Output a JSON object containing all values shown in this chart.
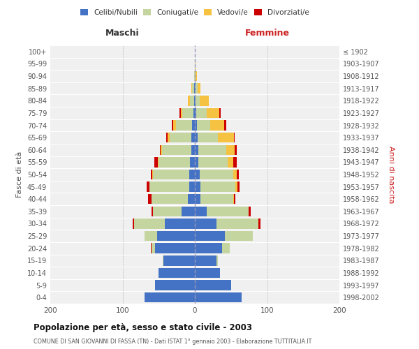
{
  "age_groups": [
    "0-4",
    "5-9",
    "10-14",
    "15-19",
    "20-24",
    "25-29",
    "30-34",
    "35-39",
    "40-44",
    "45-49",
    "50-54",
    "55-59",
    "60-64",
    "65-69",
    "70-74",
    "75-79",
    "80-84",
    "85-89",
    "90-94",
    "95-99",
    "100+"
  ],
  "birth_years": [
    "1998-2002",
    "1993-1997",
    "1988-1992",
    "1983-1987",
    "1978-1982",
    "1973-1977",
    "1968-1972",
    "1963-1967",
    "1958-1962",
    "1953-1957",
    "1948-1952",
    "1943-1947",
    "1938-1942",
    "1933-1937",
    "1928-1932",
    "1923-1927",
    "1918-1922",
    "1913-1917",
    "1908-1912",
    "1903-1907",
    "≤ 1902"
  ],
  "maschi": {
    "celibi": [
      70,
      55,
      50,
      43,
      55,
      52,
      42,
      18,
      10,
      8,
      8,
      7,
      5,
      5,
      4,
      2,
      1,
      1,
      0,
      0,
      0
    ],
    "coniugati": [
      0,
      0,
      0,
      1,
      5,
      18,
      42,
      40,
      50,
      55,
      50,
      43,
      40,
      30,
      22,
      15,
      6,
      3,
      1,
      0,
      0
    ],
    "vedovi": [
      0,
      0,
      0,
      0,
      0,
      0,
      0,
      0,
      0,
      0,
      1,
      1,
      2,
      3,
      4,
      2,
      3,
      1,
      0,
      0,
      0
    ],
    "divorziati": [
      0,
      0,
      0,
      0,
      1,
      0,
      2,
      2,
      5,
      4,
      2,
      5,
      1,
      2,
      2,
      2,
      0,
      0,
      0,
      0,
      0
    ]
  },
  "femmine": {
    "nubili": [
      65,
      50,
      35,
      30,
      38,
      42,
      30,
      16,
      8,
      8,
      7,
      5,
      5,
      4,
      3,
      2,
      1,
      1,
      0,
      0,
      0
    ],
    "coniugate": [
      0,
      0,
      0,
      2,
      10,
      38,
      58,
      58,
      45,
      48,
      46,
      40,
      38,
      28,
      18,
      14,
      6,
      3,
      1,
      0,
      0
    ],
    "vedove": [
      0,
      0,
      0,
      0,
      0,
      0,
      0,
      0,
      1,
      3,
      5,
      8,
      12,
      22,
      20,
      18,
      12,
      4,
      2,
      1,
      0
    ],
    "divorziate": [
      0,
      0,
      0,
      0,
      0,
      0,
      3,
      3,
      2,
      3,
      3,
      5,
      3,
      1,
      2,
      2,
      0,
      0,
      0,
      0,
      0
    ]
  },
  "colors": {
    "celibi": "#4472C4",
    "coniugati": "#C5D5A0",
    "vedovi": "#F5C242",
    "divorziati": "#CC0000"
  },
  "xlim": 200,
  "title": "Popolazione per età, sesso e stato civile - 2003",
  "subtitle": "COMUNE DI SAN GIOVANNI DI FASSA (TN) - Dati ISTAT 1° gennaio 2003 - Elaborazione TUTTITALIA.IT",
  "ylabel_left": "Fasce di età",
  "ylabel_right": "Anni di nascita",
  "legend_labels": [
    "Celibi/Nubili",
    "Coniugati/e",
    "Vedovi/e",
    "Divorziati/e"
  ]
}
